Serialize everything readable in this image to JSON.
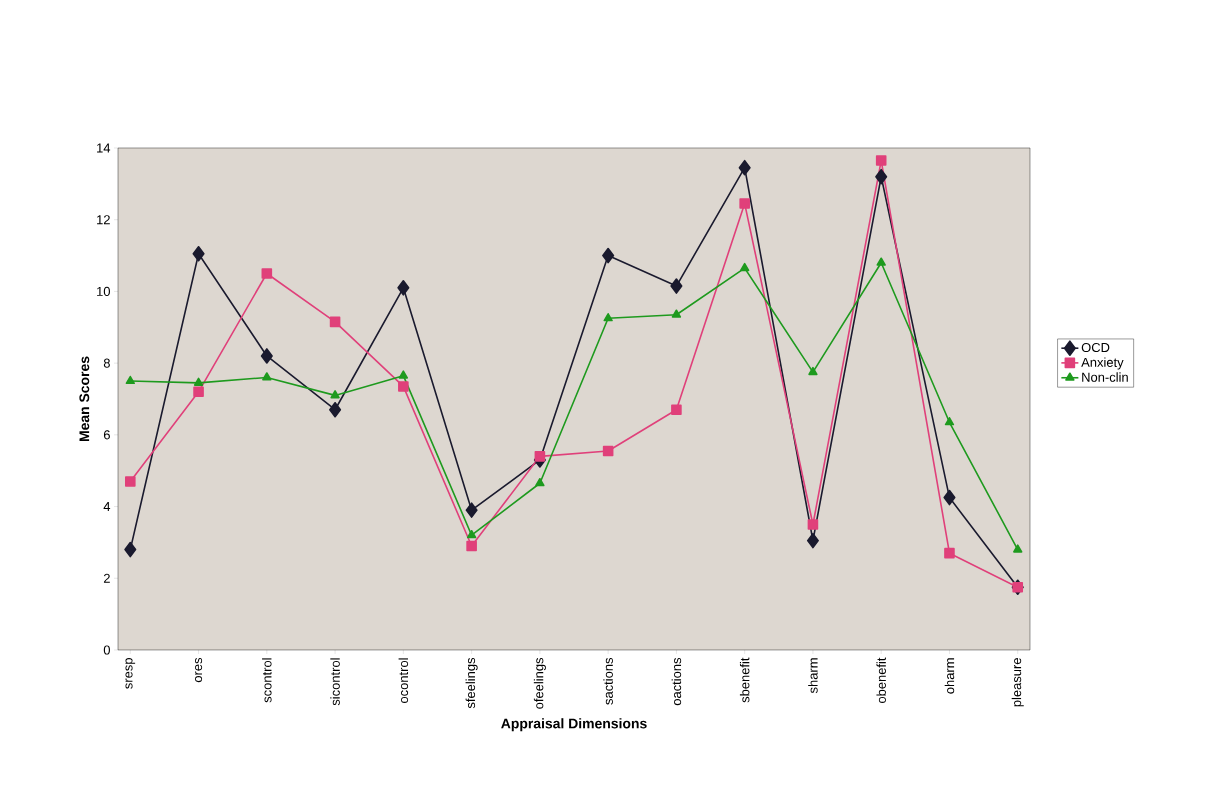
{
  "chart_data": {
    "type": "line",
    "xlabel": "Appraisal Dimensions",
    "ylabel": "Mean Scores",
    "categories": [
      "sresp",
      "ores",
      "scontrol",
      "sicontrol",
      "ocontrol",
      "sfeelings",
      "ofeelings",
      "sactions",
      "oactions",
      "sbenefit",
      "sharm",
      "obenefit",
      "oharm",
      "pleasure"
    ],
    "series": [
      {
        "name": "OCD",
        "color": "#1a1a2e",
        "marker": "diamond",
        "values": [
          2.8,
          11.05,
          8.2,
          6.7,
          10.1,
          3.9,
          5.3,
          11.0,
          10.15,
          13.45,
          3.05,
          13.2,
          4.25,
          1.75
        ]
      },
      {
        "name": "Anxiety",
        "color": "#e0407a",
        "marker": "square",
        "values": [
          4.7,
          7.2,
          10.5,
          9.15,
          7.35,
          2.9,
          5.4,
          5.55,
          6.7,
          12.45,
          3.5,
          13.65,
          2.7,
          1.75
        ]
      },
      {
        "name": "Non-clin",
        "color": "#1e9a1e",
        "marker": "triangle",
        "values": [
          7.5,
          7.45,
          7.6,
          7.1,
          7.65,
          3.2,
          4.65,
          9.25,
          9.35,
          10.65,
          7.75,
          10.8,
          6.35,
          2.8
        ]
      }
    ],
    "ylim": [
      0,
      14
    ],
    "yticks": [
      0,
      2,
      4,
      6,
      8,
      10,
      12,
      14
    ],
    "grid": false,
    "legend": "right",
    "line_style": "solid"
  }
}
